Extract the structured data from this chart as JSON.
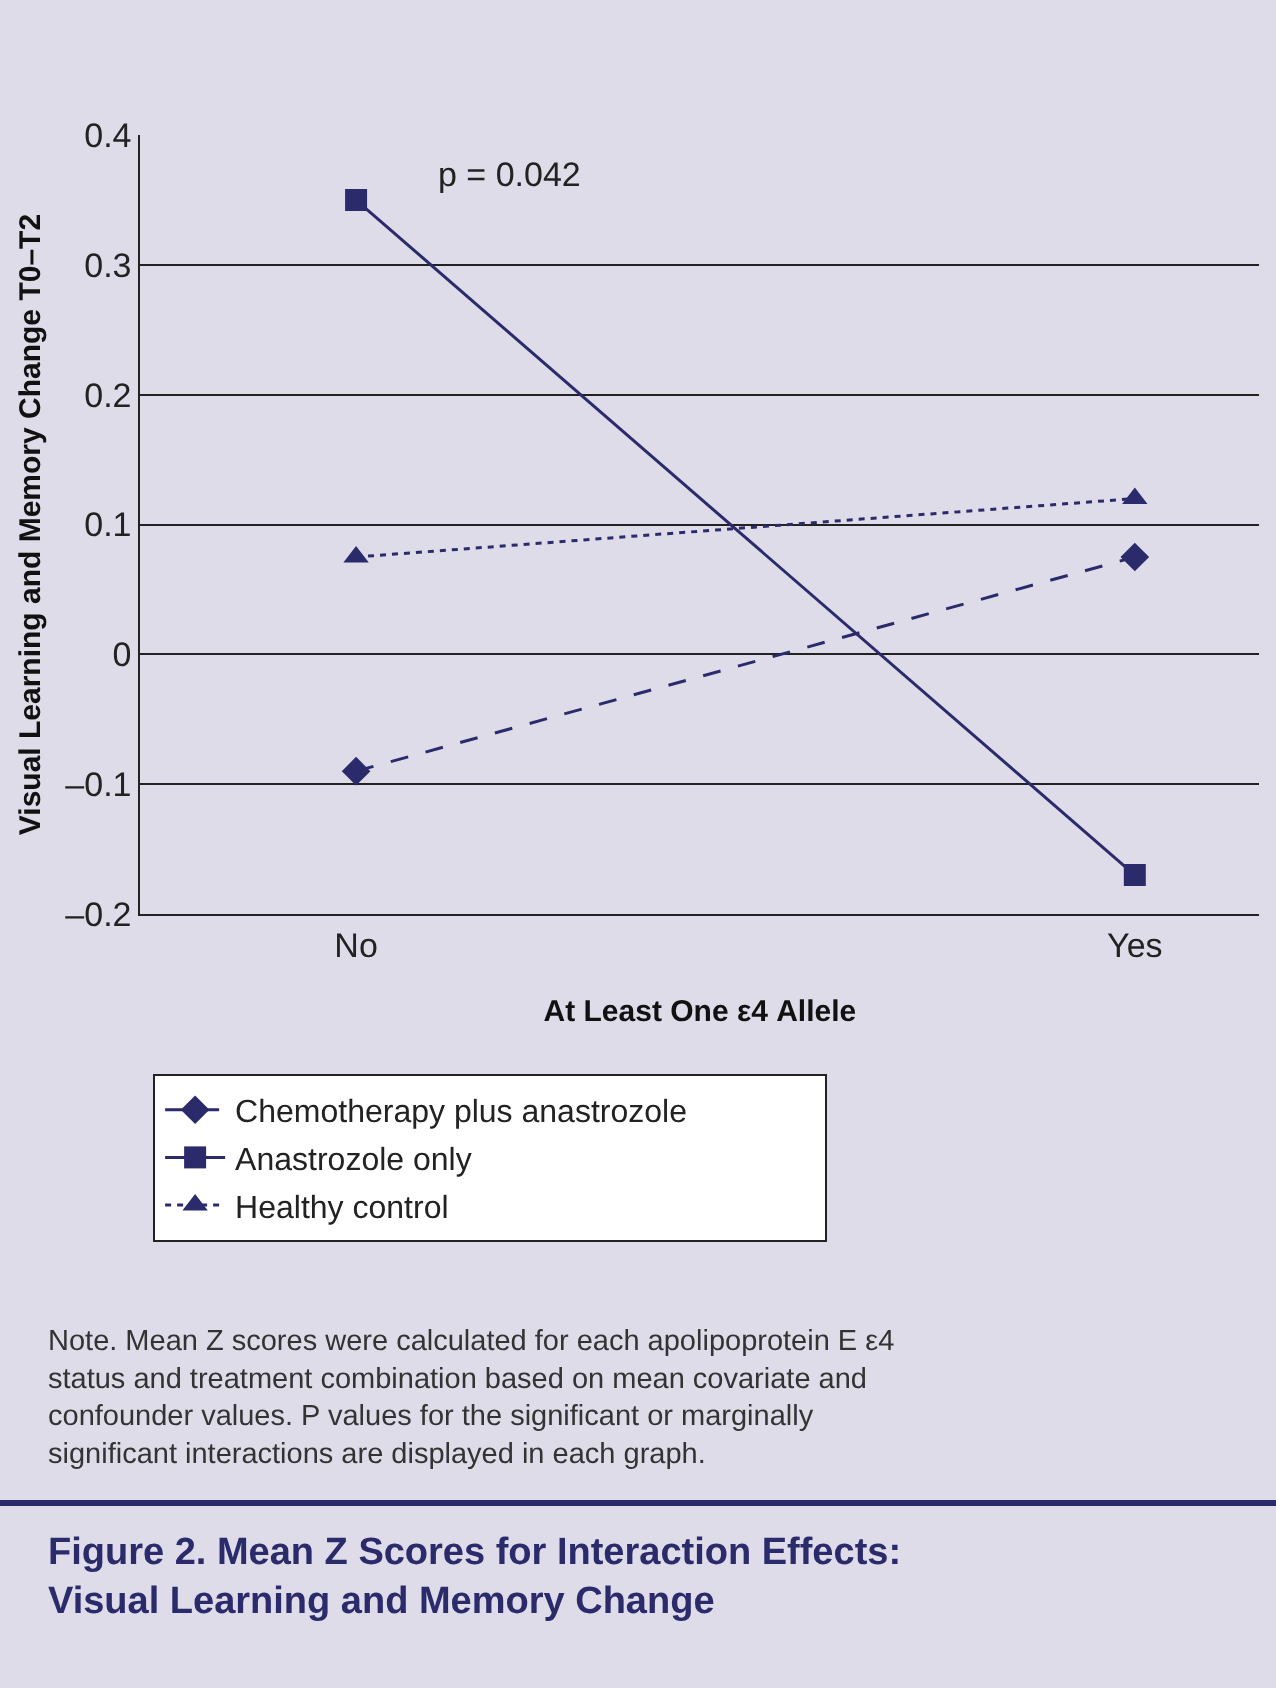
{
  "chart_data": {
    "type": "line",
    "title": "Figure 2. Mean Z Scores for Interaction Effects: Visual Learning and Memory Change",
    "xlabel": "At Least One ε4 Allele",
    "ylabel": "Visual Learning and Memory Change T0–T2",
    "categories": [
      "No",
      "Yes"
    ],
    "series": [
      {
        "name": "Chemotherapy plus anastrozole",
        "color": "#2b2a6b",
        "values": [
          -0.09,
          0.075
        ],
        "marker": "diamond",
        "line_style": "dashed"
      },
      {
        "name": "Anastrozole only",
        "color": "#2b2a6b",
        "values": [
          0.35,
          -0.17
        ],
        "marker": "square",
        "line_style": "solid"
      },
      {
        "name": "Healthy control",
        "color": "#2b2a6b",
        "values": [
          0.075,
          0.12
        ],
        "marker": "triangle",
        "line_style": "dotted"
      }
    ],
    "ylim": [
      -0.2,
      0.4
    ],
    "yticks": [
      {
        "value": -0.2,
        "label": "–0.2"
      },
      {
        "value": -0.1,
        "label": "–0.1"
      },
      0,
      0.1,
      0.2,
      0.3,
      0.4
    ],
    "grid": "y",
    "legend": "bottom",
    "annotations": [
      "p = 0.042",
      "Note. Mean Z scores were calculated for each apolipoprotein E ε4 status and treatment combination based on mean covariate and confounder values. P values for the significant or marginally significant interactions are displayed in each graph."
    ]
  }
}
